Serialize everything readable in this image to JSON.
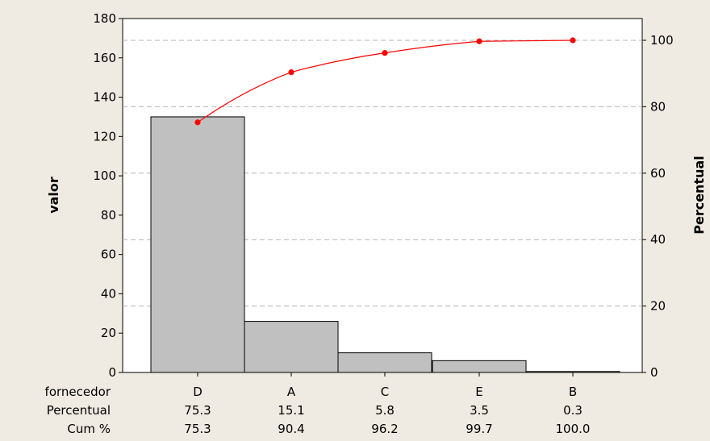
{
  "chart_data": {
    "type": "bar",
    "subtype": "pareto",
    "title": "",
    "categories": [
      "D",
      "A",
      "C",
      "E",
      "B"
    ],
    "values": [
      130,
      26,
      10,
      6,
      0.5
    ],
    "cumulative_percent_line": [
      75.3,
      90.4,
      96.2,
      99.7,
      100.0
    ],
    "ylabel": "valor",
    "y2label": "Percentual",
    "ylim": [
      0,
      180
    ],
    "y2lim": [
      0,
      100
    ],
    "yticks": [
      "0",
      "20",
      "40",
      "60",
      "80",
      "100",
      "120",
      "140",
      "160",
      "180"
    ],
    "y2ticks": [
      "0",
      "20",
      "40",
      "60",
      "80",
      "100"
    ],
    "grid": "dashed horizontal at right-axis ticks",
    "colors": {
      "bar_fill": "#c0c0c0",
      "bar_stroke": "#000000",
      "line": "#ff0000",
      "grid": "#b4b4b4"
    },
    "table": {
      "row_labels": [
        "fornecedor",
        "Percentual",
        "Cum %"
      ],
      "percentual": [
        "75.3",
        "15.1",
        "5.8",
        "3.5",
        "0.3"
      ],
      "cum": [
        "75.3",
        "90.4",
        "96.2",
        "99.7",
        "100.0"
      ]
    }
  }
}
